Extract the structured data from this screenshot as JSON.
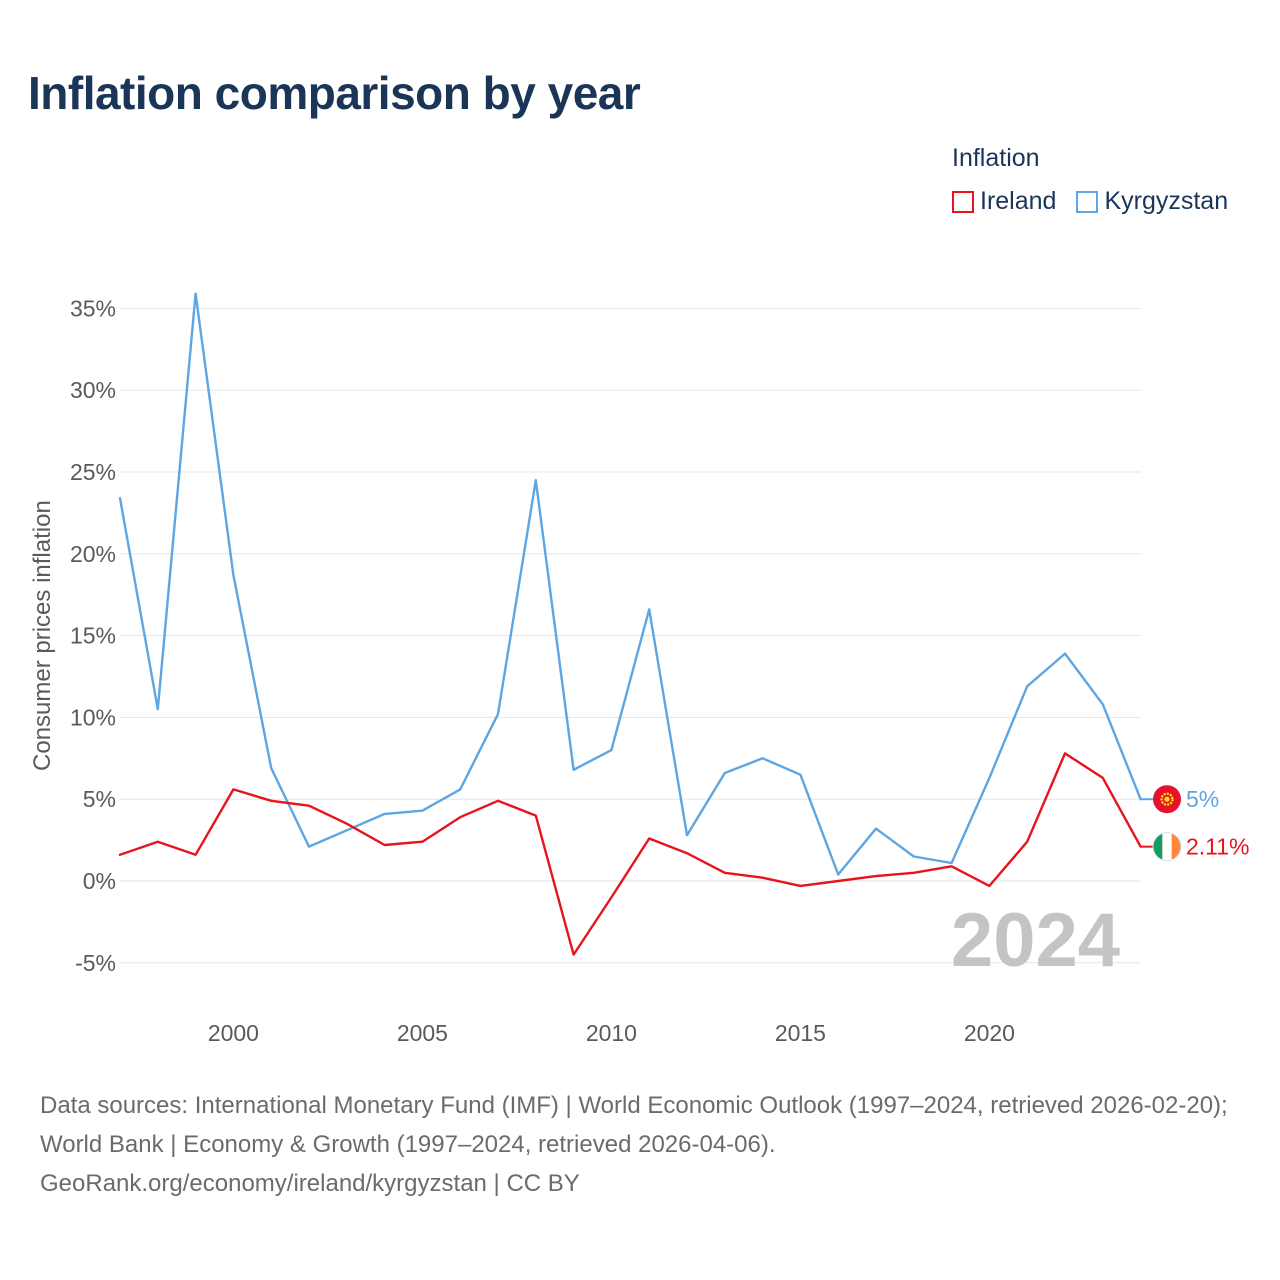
{
  "page": {
    "title": "Inflation comparison by year",
    "footer_line1": "Data sources: International Monetary Fund (IMF) | World Economic Outlook (1997–2024, retrieved 2026-02-20); World Bank | Economy & Growth (1997–2024, retrieved 2026-04-06).",
    "footer_line2": "GeoRank.org/economy/ireland/kyrgyzstan | CC BY"
  },
  "legend": {
    "title": "Inflation",
    "items": [
      {
        "label": "Ireland",
        "color": "#e8141b"
      },
      {
        "label": "Kyrgyzstan",
        "color": "#5da5e3"
      }
    ]
  },
  "chart_data": {
    "type": "line",
    "title": "Inflation comparison by year",
    "xlabel": "",
    "ylabel": "Consumer prices inflation",
    "xlim": [
      1997,
      2024
    ],
    "ylim": [
      -7,
      37
    ],
    "yticks": [
      -5,
      0,
      5,
      10,
      15,
      20,
      25,
      30,
      35
    ],
    "ytick_labels": [
      "-5%",
      "0%",
      "5%",
      "10%",
      "15%",
      "20%",
      "25%",
      "30%",
      "35%"
    ],
    "xticks": [
      2000,
      2005,
      2010,
      2015,
      2020
    ],
    "xtick_labels": [
      "2000",
      "2005",
      "2010",
      "2015",
      "2020"
    ],
    "x": [
      1997,
      1998,
      1999,
      2000,
      2001,
      2002,
      2003,
      2004,
      2005,
      2006,
      2007,
      2008,
      2009,
      2010,
      2011,
      2012,
      2013,
      2014,
      2015,
      2016,
      2017,
      2018,
      2019,
      2020,
      2021,
      2022,
      2023,
      2024
    ],
    "series": [
      {
        "name": "Ireland",
        "color": "#e8141b",
        "flag": "ireland-flag",
        "end_label": "2.11%",
        "values": [
          1.6,
          2.4,
          1.6,
          5.6,
          4.9,
          4.6,
          3.5,
          2.2,
          2.4,
          3.9,
          4.9,
          4.0,
          -4.5,
          -1.0,
          2.6,
          1.7,
          0.5,
          0.2,
          -0.3,
          0.0,
          0.3,
          0.5,
          0.9,
          -0.3,
          2.4,
          7.8,
          6.3,
          2.1
        ]
      },
      {
        "name": "Kyrgyzstan",
        "color": "#5da5e3",
        "flag": "kyrgyzstan-flag",
        "end_label": "5%",
        "values": [
          23.4,
          10.5,
          35.9,
          18.7,
          6.9,
          2.1,
          3.1,
          4.1,
          4.3,
          5.6,
          10.2,
          24.5,
          6.8,
          8.0,
          16.6,
          2.8,
          6.6,
          7.5,
          6.5,
          0.4,
          3.2,
          1.5,
          1.1,
          6.3,
          11.9,
          13.9,
          10.8,
          5.0
        ]
      }
    ],
    "watermark_year": "2024",
    "grid": true
  }
}
